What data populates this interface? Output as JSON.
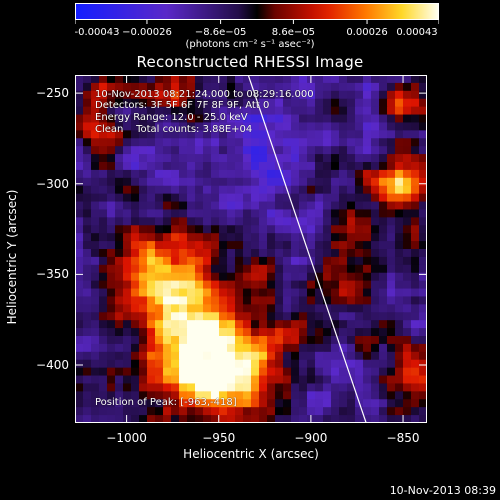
{
  "colorbar": {
    "tick_labels": [
      "-0.00043",
      "−0.00026",
      "−8.6e−05",
      "8.6e−05",
      "0.00026",
      "0.00043"
    ],
    "tick_values": [
      -0.00043,
      -0.00026,
      -8.6e-05,
      8.6e-05,
      0.00026,
      0.00043
    ],
    "units_label": "(photons cm⁻² s⁻¹ asec⁻²)"
  },
  "title": "Reconstructed RHESSI Image",
  "annotations": {
    "time_range": "10-Nov-2013 08:21:24.000 to 08:29:16.000",
    "detectors": "Detectors: 3F 5F 6F 7F 8F 9F, Att 0",
    "energy": "Energy Range: 12.0 - 25.0 keV",
    "method": "Clean    Total counts: 3.88E+04",
    "peak": "Position of Peak: [-963,-418]"
  },
  "axes": {
    "xlabel": "Heliocentric X (arcsec)",
    "ylabel": "Heliocentric Y (arcsec)",
    "x_ticks": [
      "−1000",
      "−950",
      "−900",
      "−850"
    ],
    "x_tick_values": [
      -1000,
      -950,
      -900,
      -850
    ],
    "y_ticks": [
      "−250",
      "−300",
      "−350",
      "−400"
    ],
    "y_tick_values": [
      -250,
      -300,
      -350,
      -400
    ],
    "xlim": [
      -1028,
      -837
    ],
    "ylim": [
      -432,
      -240
    ]
  },
  "limb": {
    "x": [
      -934,
      -870
    ],
    "y": [
      -240,
      -432
    ]
  },
  "peak_position": {
    "x": -963,
    "y": -418
  },
  "colormap": "red-yellow-white positive, purple-blue negative",
  "timestamp": "10-Nov-2013 08:39"
}
